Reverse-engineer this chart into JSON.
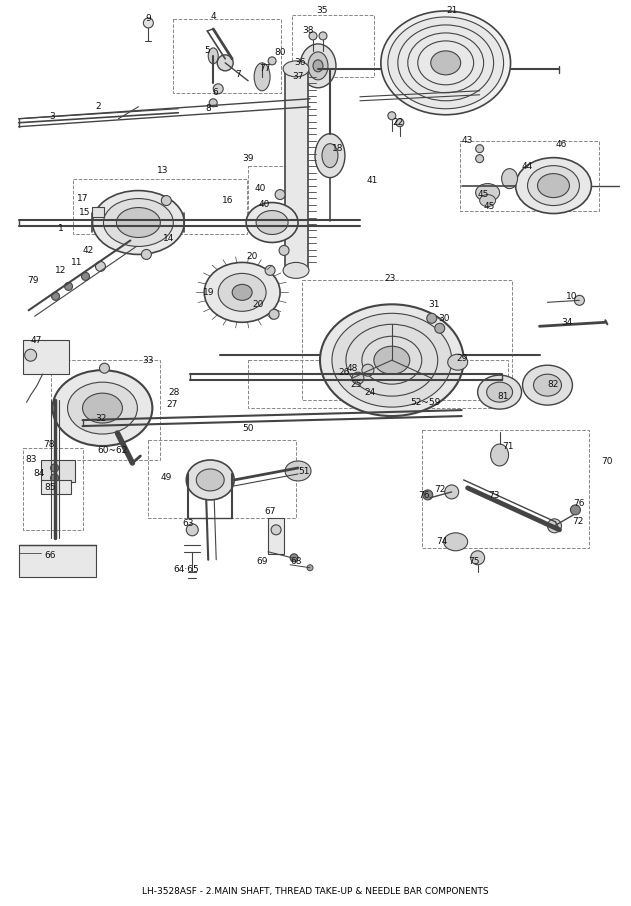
{
  "title": "LH-3528ASF - 2.MAIN SHAFT, THREAD TAKE-UP & NEEDLE BAR COMPONENTS",
  "bg_color": "#ffffff",
  "line_color": "#444444",
  "dash_color": "#888888",
  "label_color": "#111111",
  "label_fontsize": 6.5,
  "title_fontsize": 6.5,
  "fig_width": 6.31,
  "fig_height": 9.06
}
